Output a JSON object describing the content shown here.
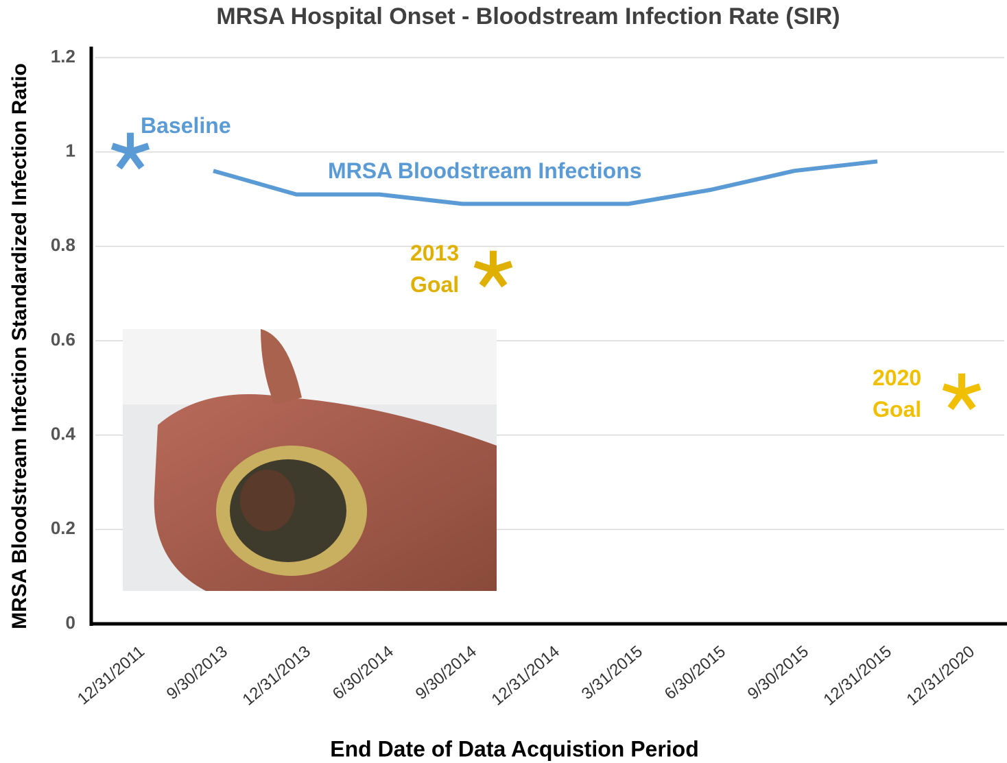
{
  "chart_data": {
    "type": "line",
    "title": "MRSA Hospital Onset - Bloodstream Infection Rate (SIR)",
    "y_label": "MRSA Bloodstream Infection Standardized Infection Ratio",
    "x_label": "End Date of Data Acquistion Period",
    "categories": [
      "12/31/2011",
      "9/30/2013",
      "12/31/2013",
      "6/30/2014",
      "9/30/2014",
      "12/31/2014",
      "3/31/2015",
      "6/30/2015",
      "9/30/2015",
      "12/31/2015",
      "12/31/2020"
    ],
    "series": [
      {
        "name": "Baseline",
        "color": "#5b9bd5",
        "marker": "asterisk",
        "values": [
          1.0,
          null,
          null,
          null,
          null,
          null,
          null,
          null,
          null,
          null,
          null
        ]
      },
      {
        "name": "MRSA Bloodstream Infections",
        "color": "#5b9bd5",
        "marker": "none",
        "values": [
          null,
          0.96,
          0.91,
          0.91,
          0.89,
          0.89,
          0.89,
          0.92,
          0.96,
          0.98,
          null
        ]
      },
      {
        "name": "2013 Goal",
        "color": "#e0b000",
        "marker": "asterisk",
        "values": [
          null,
          null,
          null,
          null,
          0.75,
          null,
          null,
          null,
          null,
          null,
          null
        ]
      },
      {
        "name": "2020 Goal",
        "color": "#f0c000",
        "marker": "asterisk",
        "values": [
          null,
          null,
          null,
          null,
          null,
          null,
          null,
          null,
          null,
          null,
          0.49
        ]
      }
    ],
    "ylim": [
      0,
      1.2
    ],
    "yticks": [
      0,
      0.2,
      0.4,
      0.6,
      0.8,
      1,
      1.2
    ],
    "grid": true
  }
}
